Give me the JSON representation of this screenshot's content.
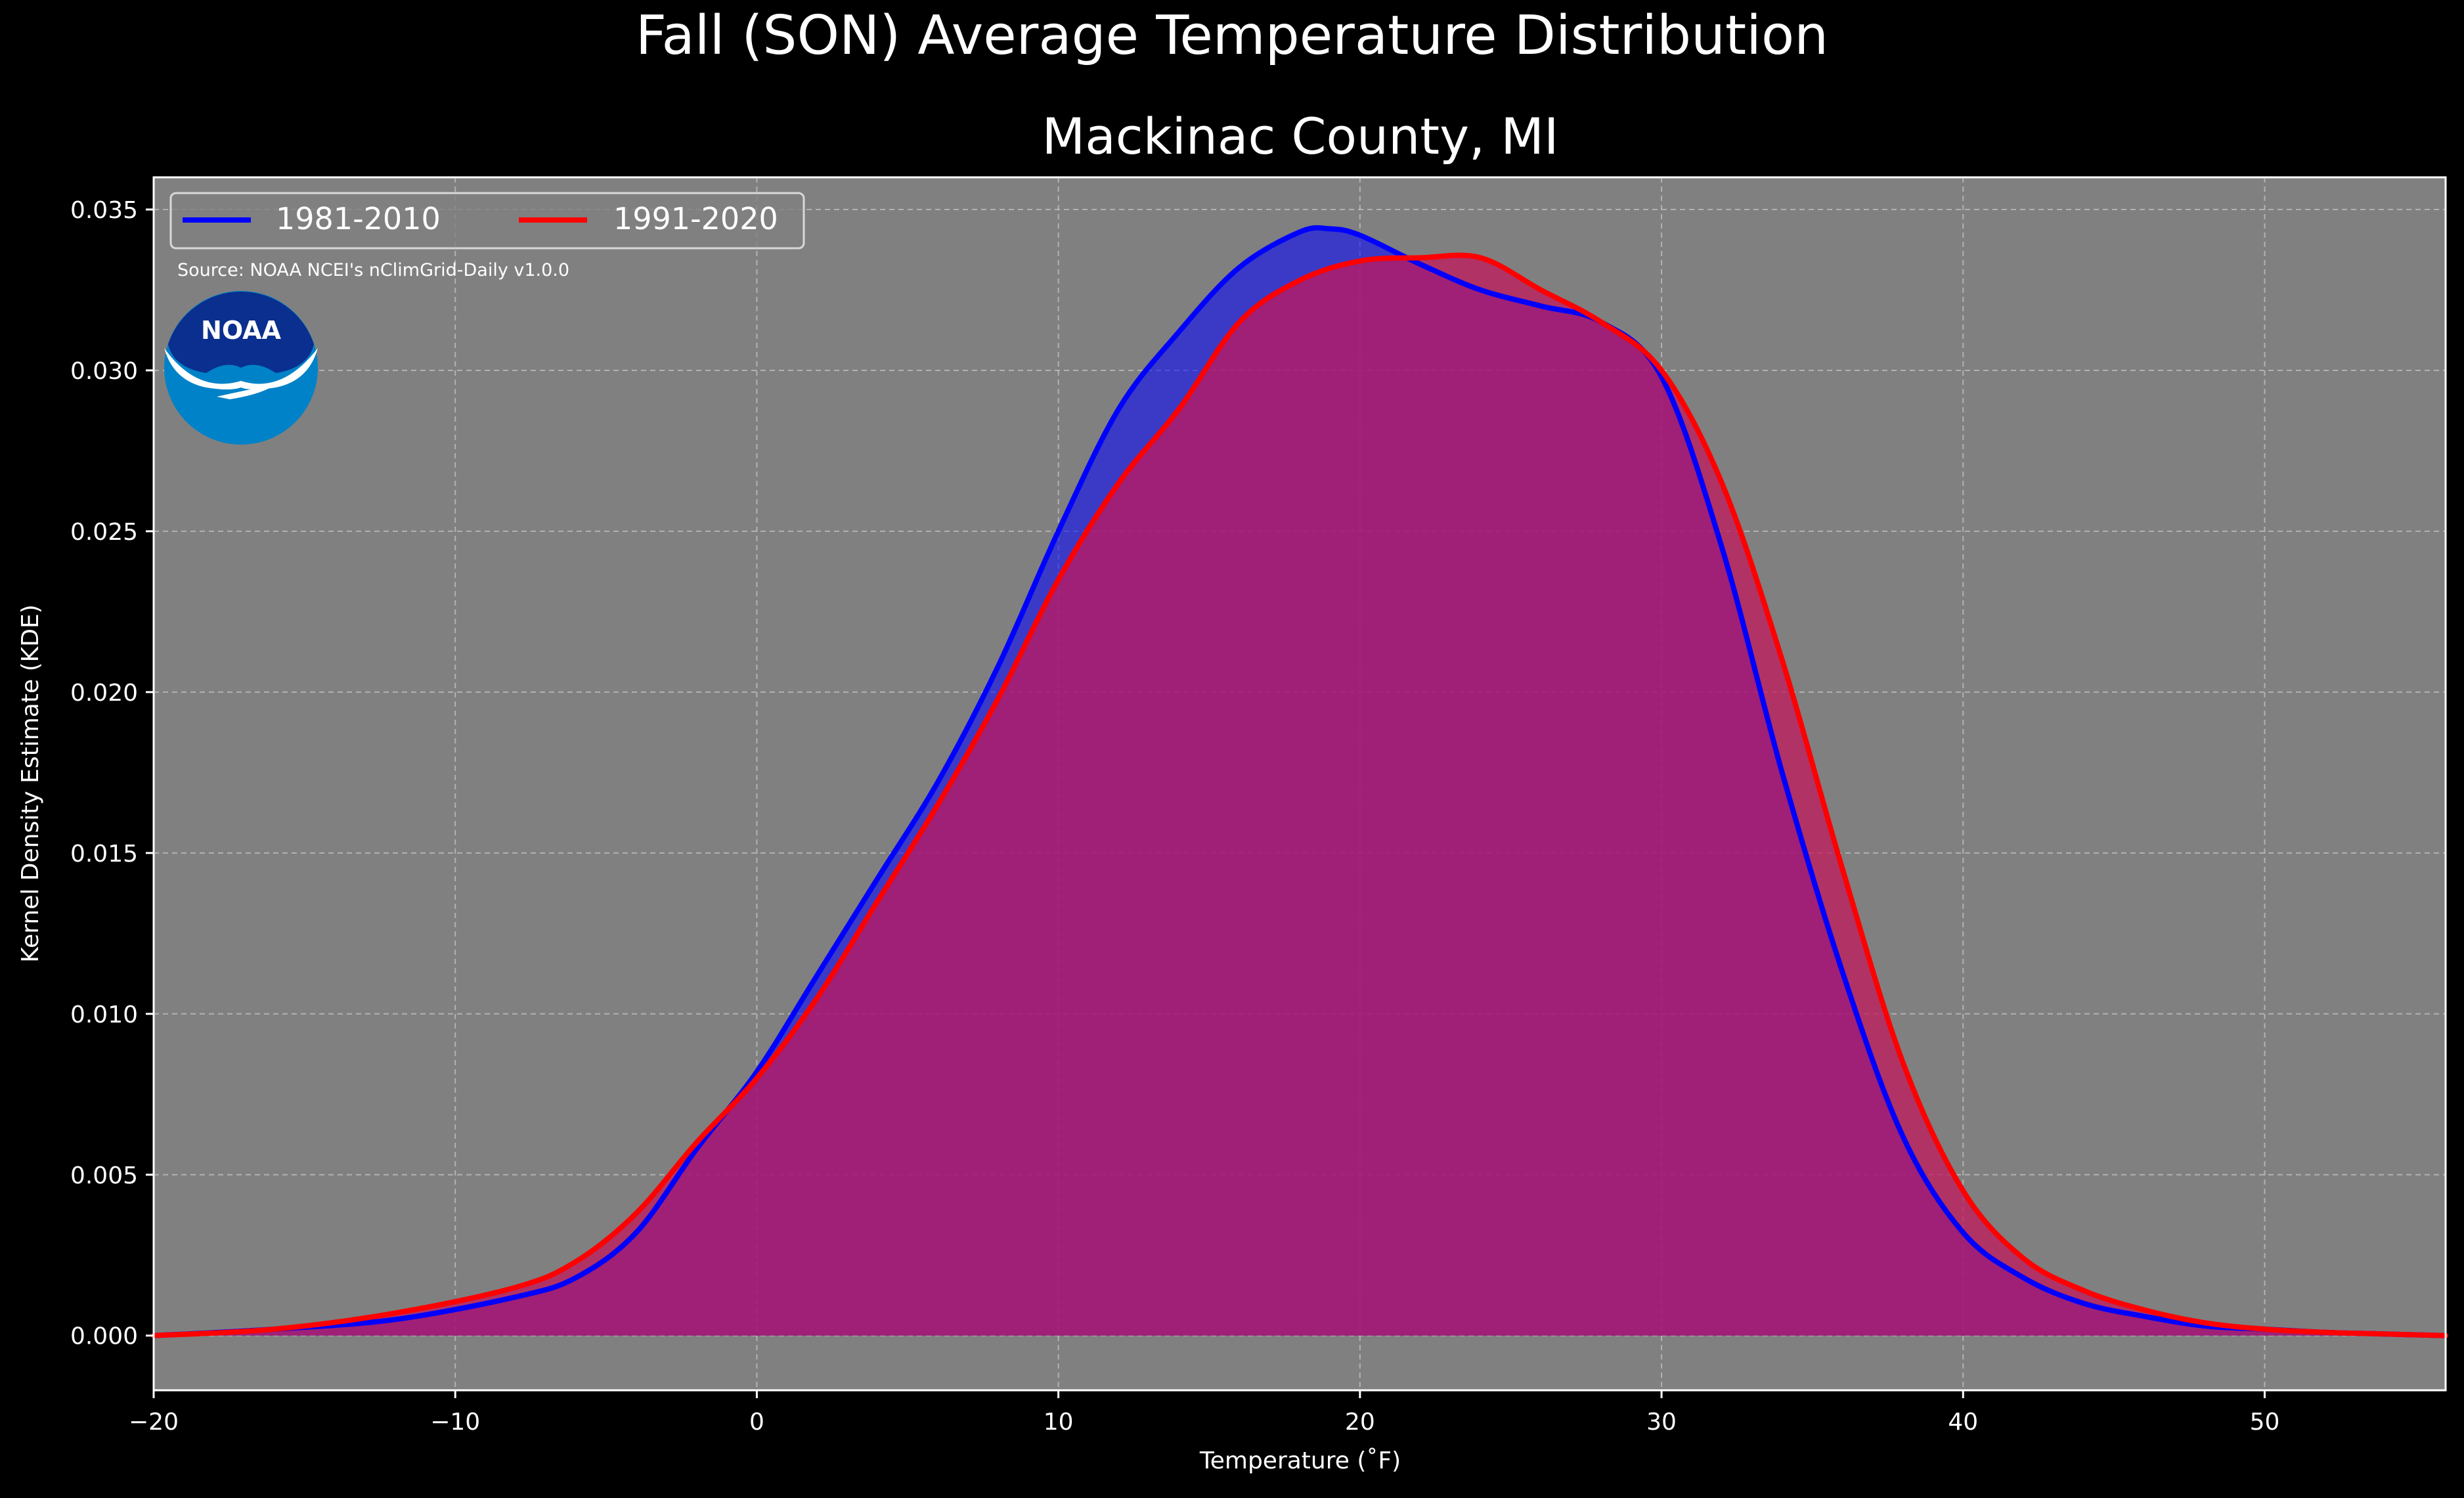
{
  "chart_data": {
    "type": "area",
    "title": "Fall (SON) Average Temperature Distribution",
    "subtitle": "Mackinac County, MI",
    "xlabel": "Temperature (˚F)",
    "ylabel": "Kernel Density Estimate (KDE)",
    "source": "Source: NOAA NCEI's nClimGrid-Daily v1.0.0",
    "logo_text": "NOAA",
    "xlim": [
      -20,
      56
    ],
    "ylim": [
      -0.0017,
      0.036
    ],
    "x_ticks": [
      -20,
      -10,
      0,
      10,
      20,
      30,
      40,
      50
    ],
    "x_tick_labels": [
      "−20",
      "−10",
      "0",
      "10",
      "20",
      "30",
      "40",
      "50"
    ],
    "y_ticks": [
      0.0,
      0.005,
      0.01,
      0.015,
      0.02,
      0.025,
      0.03,
      0.035
    ],
    "y_tick_labels": [
      "0.000",
      "0.005",
      "0.010",
      "0.015",
      "0.020",
      "0.025",
      "0.030",
      "0.035"
    ],
    "grid": true,
    "legend_position": "top-left",
    "background_color": "#000000",
    "axes_color": "#808080",
    "series": [
      {
        "name": "1981-2010",
        "color": "#0000ff",
        "fill_color": "#0000ff",
        "x": [
          -20,
          -16,
          -12,
          -8,
          -6,
          -4,
          -2,
          0,
          2,
          4,
          6,
          8,
          10,
          12,
          14,
          16,
          18,
          19,
          20,
          22,
          24,
          26,
          28,
          30,
          32,
          34,
          36,
          38,
          40,
          42,
          44,
          46,
          48,
          50,
          52,
          54,
          56
        ],
        "y": [
          0.0,
          0.0002,
          0.0005,
          0.0012,
          0.0018,
          0.0032,
          0.0058,
          0.0082,
          0.0112,
          0.0142,
          0.0172,
          0.0208,
          0.025,
          0.0288,
          0.0312,
          0.0332,
          0.0343,
          0.0344,
          0.0342,
          0.0333,
          0.0325,
          0.032,
          0.0315,
          0.0298,
          0.0245,
          0.0175,
          0.0113,
          0.0062,
          0.0032,
          0.0018,
          0.001,
          0.0006,
          0.0003,
          0.0002,
          0.0001,
          5e-05,
          0.0
        ]
      },
      {
        "name": "1991-2020",
        "color": "#ff0000",
        "fill_color": "#c2185b",
        "x": [
          -20,
          -16,
          -12,
          -8,
          -6,
          -4,
          -2,
          0,
          2,
          4,
          6,
          8,
          10,
          12,
          14,
          16,
          18,
          20,
          22,
          24,
          26,
          28,
          30,
          32,
          34,
          36,
          38,
          40,
          42,
          44,
          46,
          48,
          50,
          52,
          54,
          56
        ],
        "y": [
          0.0,
          0.0002,
          0.0007,
          0.0015,
          0.0023,
          0.0038,
          0.006,
          0.008,
          0.0105,
          0.0135,
          0.0165,
          0.0198,
          0.0235,
          0.0265,
          0.0288,
          0.0315,
          0.0328,
          0.0334,
          0.0335,
          0.0335,
          0.0325,
          0.0315,
          0.03,
          0.0265,
          0.021,
          0.0145,
          0.0085,
          0.0045,
          0.0024,
          0.0014,
          0.0008,
          0.0004,
          0.0002,
          0.0001,
          5e-05,
          0.0
        ]
      }
    ]
  }
}
